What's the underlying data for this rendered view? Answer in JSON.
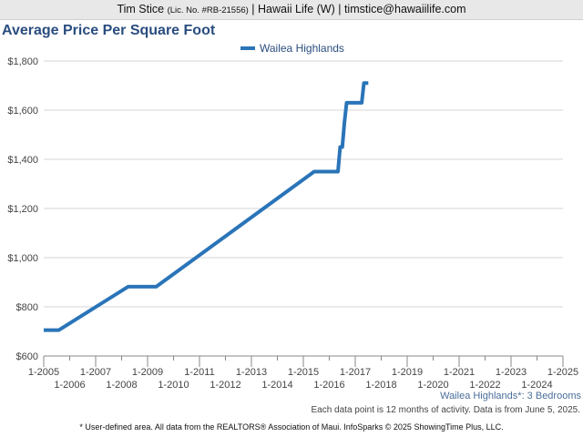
{
  "header": {
    "agent_name": "Tim Stice",
    "license": "(Lic. No. #RB-21556)",
    "rest": "| Hawaii Life (W) | timstice@hawaiilife.com"
  },
  "chart_data": {
    "type": "line",
    "title": "Average Price Per Square Foot",
    "xlabel": "",
    "ylabel": "",
    "ylim": [
      600,
      1800
    ],
    "xlim": [
      "2005-01",
      "2025-01"
    ],
    "y_ticks": [
      600,
      800,
      1000,
      1200,
      1400,
      1600,
      1800
    ],
    "y_tick_labels": [
      "$600",
      "$800",
      "$1,000",
      "$1,200",
      "$1,400",
      "$1,600",
      "$1,800"
    ],
    "x_ticks_top": [
      "1-2005",
      "1-2007",
      "1-2009",
      "1-2011",
      "1-2013",
      "1-2015",
      "1-2017",
      "1-2019",
      "1-2021",
      "1-2023",
      "1-2025"
    ],
    "x_ticks_bottom": [
      "1-2006",
      "1-2008",
      "1-2010",
      "1-2012",
      "1-2014",
      "1-2016",
      "1-2018",
      "1-2020",
      "1-2022",
      "1-2024"
    ],
    "grid": true,
    "legend_position": "top-center",
    "series": [
      {
        "name": "Wailea Highlands",
        "color": "#2a74b8",
        "x": [
          "2005-01",
          "2005-08",
          "2008-04",
          "2009-05",
          "2015-06",
          "2016-05",
          "2016-06",
          "2016-07",
          "2016-08",
          "2016-09",
          "2016-10",
          "2017-04",
          "2017-05",
          "2017-07"
        ],
        "values": [
          705,
          705,
          882,
          882,
          1350,
          1350,
          1450,
          1450,
          1550,
          1630,
          1630,
          1630,
          1710,
          1710
        ]
      }
    ]
  },
  "caption": "Wailea Highlands*: 3 Bedrooms",
  "note": "Each data point is 12 months of activity. Data is from June 5, 2025.",
  "source": "* User-defined area. All data from the REALTORS® Association of Maui. InfoSparks © 2025 ShowingTime Plus, LLC."
}
